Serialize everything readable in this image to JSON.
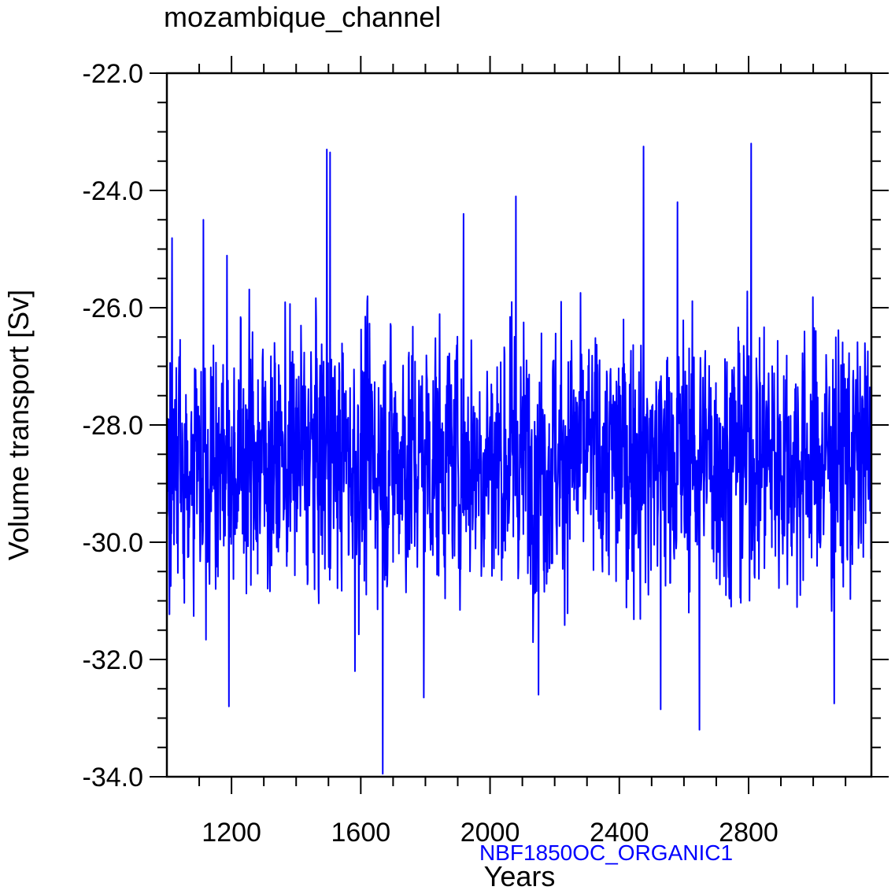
{
  "chart_data": {
    "type": "line",
    "title": "mozambique_channel",
    "xlabel": "Years",
    "ylabel": "Volume transport [Sv]",
    "annotation": "NBF1850OC_ORGANIC1",
    "xlim": [
      1000,
      3180
    ],
    "ylim": [
      -34.0,
      -22.0
    ],
    "x_ticks": [
      1200,
      1600,
      2000,
      2400,
      2800
    ],
    "x_tick_labels": [
      "1200",
      "1600",
      "2000",
      "2400",
      "2800"
    ],
    "y_ticks": [
      -22.0,
      -24.0,
      -26.0,
      -28.0,
      -30.0,
      -32.0,
      -34.0
    ],
    "y_tick_labels": [
      "-22.0",
      "-24.0",
      "-26.0",
      "-28.0",
      "-30.0",
      "-32.0",
      "-34.0"
    ],
    "grid": false,
    "line_color": "#0000ff",
    "annotation_color": "#0000ff",
    "series": [
      {
        "x_start": 1000,
        "x_step": 1,
        "values": []
      }
    ],
    "extremes": [
      {
        "x": 1113,
        "y": -24.5
      },
      {
        "x": 1192,
        "y": -32.8
      },
      {
        "x": 1495,
        "y": -23.3
      },
      {
        "x": 1505,
        "y": -23.35
      },
      {
        "x": 1582,
        "y": -32.2
      },
      {
        "x": 1668,
        "y": -33.95
      },
      {
        "x": 1795,
        "y": -32.65
      },
      {
        "x": 1918,
        "y": -24.4
      },
      {
        "x": 2080,
        "y": -24.1
      },
      {
        "x": 2150,
        "y": -32.6
      },
      {
        "x": 2475,
        "y": -23.25
      },
      {
        "x": 2528,
        "y": -32.85
      },
      {
        "x": 2580,
        "y": -24.2
      },
      {
        "x": 2648,
        "y": -33.2
      },
      {
        "x": 2808,
        "y": -23.2
      },
      {
        "x": 3065,
        "y": -32.75
      }
    ]
  }
}
